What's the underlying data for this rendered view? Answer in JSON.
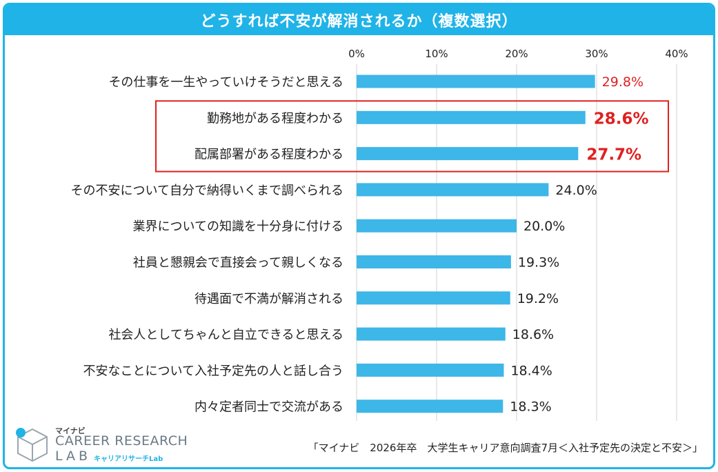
{
  "title": "どうすれば不安が解消されるか（複数選択）",
  "source": "「マイナビ　2026年卒　大学生キャリア意向調査7月＜入社予定先の決定と不安＞」",
  "logo": {
    "brand": "マイナビ",
    "name": "CAREER RESEARCH",
    "lab": "LAB",
    "sub": "キャリアリサーチLab",
    "icon": "cube-icon"
  },
  "colors": {
    "accent": "#1fb3e8",
    "bar": "#3db6e8",
    "highlight": "#e02020",
    "text": "#222222",
    "grid": "#d0d0d0"
  },
  "chart_data": {
    "type": "bar",
    "orientation": "horizontal",
    "categories": [
      "その仕事を一生やっていけそうだと思える",
      "勤務地がある程度わかる",
      "配属部署がある程度わかる",
      "その不安について自分で納得いくまで調べられる",
      "業界についての知識を十分身に付ける",
      "社員と懇親会で直接会って親しくなる",
      "待遇面で不満が解消される",
      "社会人としてちゃんと自立できると思える",
      "不安なことについて入社予定先の人と話し合う",
      "内々定者同士で交流がある"
    ],
    "values": [
      29.8,
      28.6,
      27.7,
      24.0,
      20.0,
      19.3,
      19.2,
      18.6,
      18.4,
      18.3
    ],
    "data_labels": [
      "29.8%",
      "28.6%",
      "27.7%",
      "24.0%",
      "20.0%",
      "19.3%",
      "19.2%",
      "18.6%",
      "18.4%",
      "18.3%"
    ],
    "label_colors": [
      "#e02020",
      "#e02020",
      "#e02020",
      "#222222",
      "#222222",
      "#222222",
      "#222222",
      "#222222",
      "#222222",
      "#222222"
    ],
    "label_bold": [
      false,
      true,
      true,
      false,
      false,
      false,
      false,
      false,
      false,
      false
    ],
    "highlighted_categories": [
      "勤務地がある程度わかる",
      "配属部署がある程度わかる"
    ],
    "xlim": [
      0,
      40
    ],
    "ticks": [
      0,
      10,
      20,
      30,
      40
    ],
    "tick_labels": [
      "0%",
      "10%",
      "20%",
      "30%",
      "40%"
    ],
    "grid": true,
    "title": "どうすれば不安が解消されるか（複数選択）",
    "xlabel": "",
    "ylabel": ""
  }
}
